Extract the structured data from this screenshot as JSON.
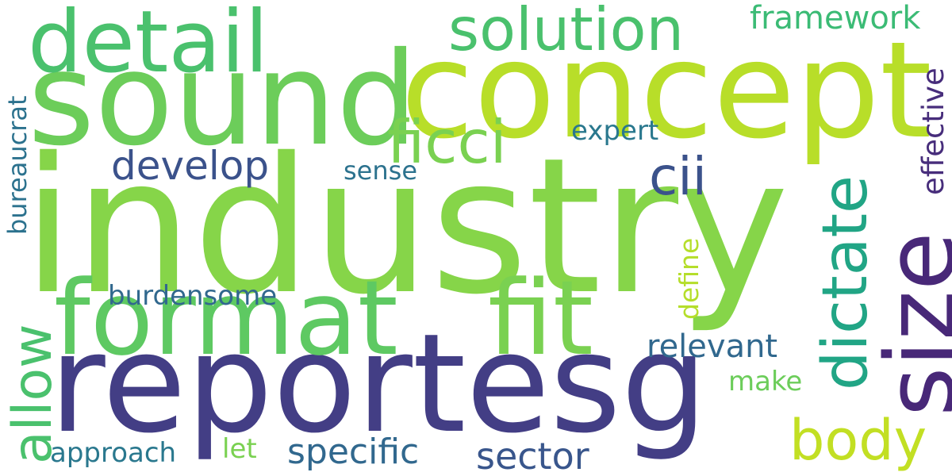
{
  "words": {
    "industry": {
      "text": "industry",
      "color": "#86d549"
    },
    "sound": {
      "text": "sound",
      "color": "#6ccd5a"
    },
    "concept": {
      "text": "concept",
      "color": "#b8de29"
    },
    "reportesg": {
      "text": "reportesg",
      "color": "#433e85"
    },
    "format": {
      "text": "format",
      "color": "#5ec962"
    },
    "fit": {
      "text": "fit",
      "color": "#7ad151"
    },
    "detail": {
      "text": "detail",
      "color": "#4ac16d"
    },
    "solution": {
      "text": "solution",
      "color": "#4ac16d"
    },
    "framework": {
      "text": "framework",
      "color": "#3bbb75"
    },
    "ficci": {
      "text": "ficci",
      "color": "#7ad151"
    },
    "cii": {
      "text": "cii",
      "color": "#3b528b"
    },
    "develop": {
      "text": "develop",
      "color": "#3b528b"
    },
    "expert": {
      "text": "expert",
      "color": "#2a788e"
    },
    "sense": {
      "text": "sense",
      "color": "#2c728e"
    },
    "dictate": {
      "text": "dictate",
      "color": "#21a585"
    },
    "size": {
      "text": "size",
      "color": "#482878"
    },
    "effective": {
      "text": "effective",
      "color": "#472d7b"
    },
    "bureaucrat": {
      "text": "bureaucrat",
      "color": "#2c728e"
    },
    "allow": {
      "text": "allow",
      "color": "#4ac16d"
    },
    "burdensome": {
      "text": "burdensome",
      "color": "#31688e"
    },
    "define": {
      "text": "define",
      "color": "#b5de2b"
    },
    "relevant": {
      "text": "relevant",
      "color": "#31688e"
    },
    "make": {
      "text": "make",
      "color": "#6ccd5a"
    },
    "body": {
      "text": "body",
      "color": "#c2df23"
    },
    "approach": {
      "text": "approach",
      "color": "#2a788e"
    },
    "let": {
      "text": "let",
      "color": "#7ad151"
    },
    "specific": {
      "text": "specific",
      "color": "#31688e"
    },
    "sector": {
      "text": "sector",
      "color": "#39568c"
    }
  }
}
